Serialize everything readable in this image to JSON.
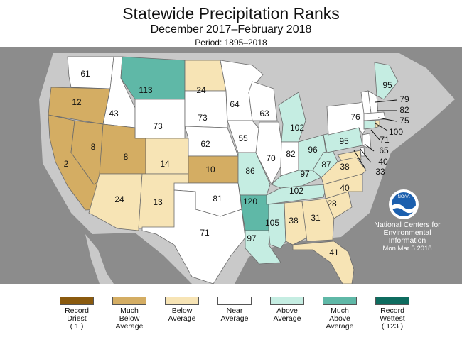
{
  "header": {
    "title": "Statewide Precipitation Ranks",
    "subtitle": "December 2017–February 2018",
    "period": "Period: 1895–2018"
  },
  "categories": [
    {
      "key": "record_driest",
      "label": "Record\nDriest\n( 1 )",
      "color": "#8a5a0e"
    },
    {
      "key": "much_below",
      "label": "Much\nBelow\nAverage",
      "color": "#d4ad63"
    },
    {
      "key": "below",
      "label": "Below\nAverage",
      "color": "#f7e4b5"
    },
    {
      "key": "near",
      "label": "Near\nAverage",
      "color": "#ffffff"
    },
    {
      "key": "above",
      "label": "Above\nAverage",
      "color": "#c5ede2"
    },
    {
      "key": "much_above",
      "label": "Much\nAbove\nAverage",
      "color": "#5fb8a7"
    },
    {
      "key": "record_wettest",
      "label": "Record\nWettest\n( 123 )",
      "color": "#0e6c5f"
    }
  ],
  "states": [
    {
      "abbr": "WA",
      "rank": "61",
      "category": "near"
    },
    {
      "abbr": "OR",
      "rank": "12",
      "category": "much_below"
    },
    {
      "abbr": "CA",
      "rank": "2",
      "category": "much_below"
    },
    {
      "abbr": "NV",
      "rank": "8",
      "category": "much_below"
    },
    {
      "abbr": "ID",
      "rank": "43",
      "category": "near"
    },
    {
      "abbr": "MT",
      "rank": "113",
      "category": "much_above"
    },
    {
      "abbr": "WY",
      "rank": "73",
      "category": "near"
    },
    {
      "abbr": "UT",
      "rank": "8",
      "category": "much_below"
    },
    {
      "abbr": "AZ",
      "rank": "24",
      "category": "below"
    },
    {
      "abbr": "CO",
      "rank": "14",
      "category": "below"
    },
    {
      "abbr": "NM",
      "rank": "13",
      "category": "below"
    },
    {
      "abbr": "ND",
      "rank": "24",
      "category": "below"
    },
    {
      "abbr": "SD",
      "rank": "73",
      "category": "near"
    },
    {
      "abbr": "NE",
      "rank": "62",
      "category": "near"
    },
    {
      "abbr": "KS",
      "rank": "10",
      "category": "much_below"
    },
    {
      "abbr": "OK",
      "rank": "81",
      "category": "near"
    },
    {
      "abbr": "TX",
      "rank": "71",
      "category": "near"
    },
    {
      "abbr": "MN",
      "rank": "64",
      "category": "near"
    },
    {
      "abbr": "IA",
      "rank": "55",
      "category": "near"
    },
    {
      "abbr": "MO",
      "rank": "86",
      "category": "above"
    },
    {
      "abbr": "AR",
      "rank": "120",
      "category": "much_above"
    },
    {
      "abbr": "LA",
      "rank": "97",
      "category": "above"
    },
    {
      "abbr": "WI",
      "rank": "63",
      "category": "near"
    },
    {
      "abbr": "IL",
      "rank": "70",
      "category": "near"
    },
    {
      "abbr": "MI",
      "rank": "102",
      "category": "above"
    },
    {
      "abbr": "IN",
      "rank": "82",
      "category": "near"
    },
    {
      "abbr": "OH",
      "rank": "96",
      "category": "above"
    },
    {
      "abbr": "KY",
      "rank": "97",
      "category": "above"
    },
    {
      "abbr": "TN",
      "rank": "102",
      "category": "above"
    },
    {
      "abbr": "MS",
      "rank": "105",
      "category": "above"
    },
    {
      "abbr": "AL",
      "rank": "38",
      "category": "below"
    },
    {
      "abbr": "GA",
      "rank": "31",
      "category": "below"
    },
    {
      "abbr": "FL",
      "rank": "41",
      "category": "below"
    },
    {
      "abbr": "SC",
      "rank": "28",
      "category": "below"
    },
    {
      "abbr": "NC",
      "rank": "40",
      "category": "below"
    },
    {
      "abbr": "VA",
      "rank": "38",
      "category": "below"
    },
    {
      "abbr": "WV",
      "rank": "87",
      "category": "above"
    },
    {
      "abbr": "PA",
      "rank": "95",
      "category": "above"
    },
    {
      "abbr": "NY",
      "rank": "76",
      "category": "near"
    },
    {
      "abbr": "ME",
      "rank": "95",
      "category": "above"
    },
    {
      "abbr": "NH",
      "rank": "79",
      "category": "near"
    },
    {
      "abbr": "VT",
      "rank": "82",
      "category": "near"
    },
    {
      "abbr": "MA",
      "rank": "75",
      "category": "near"
    },
    {
      "abbr": "CT",
      "rank": "100",
      "category": "above"
    },
    {
      "abbr": "NJ",
      "rank": "71",
      "category": "near"
    },
    {
      "abbr": "DE",
      "rank": "65",
      "category": "near"
    },
    {
      "abbr": "MD",
      "rank": "40",
      "category": "below"
    },
    {
      "abbr": "RI",
      "rank": "33",
      "category": "below"
    }
  ],
  "credit": {
    "line1": "National Centers for",
    "line2": "Environmental",
    "line3": "Information",
    "date": "Mon Mar  5 2018",
    "logo_text": "NOAA"
  },
  "colors": {
    "ocean": "#8c8c8c",
    "land_outside": "#c9c9c9"
  }
}
